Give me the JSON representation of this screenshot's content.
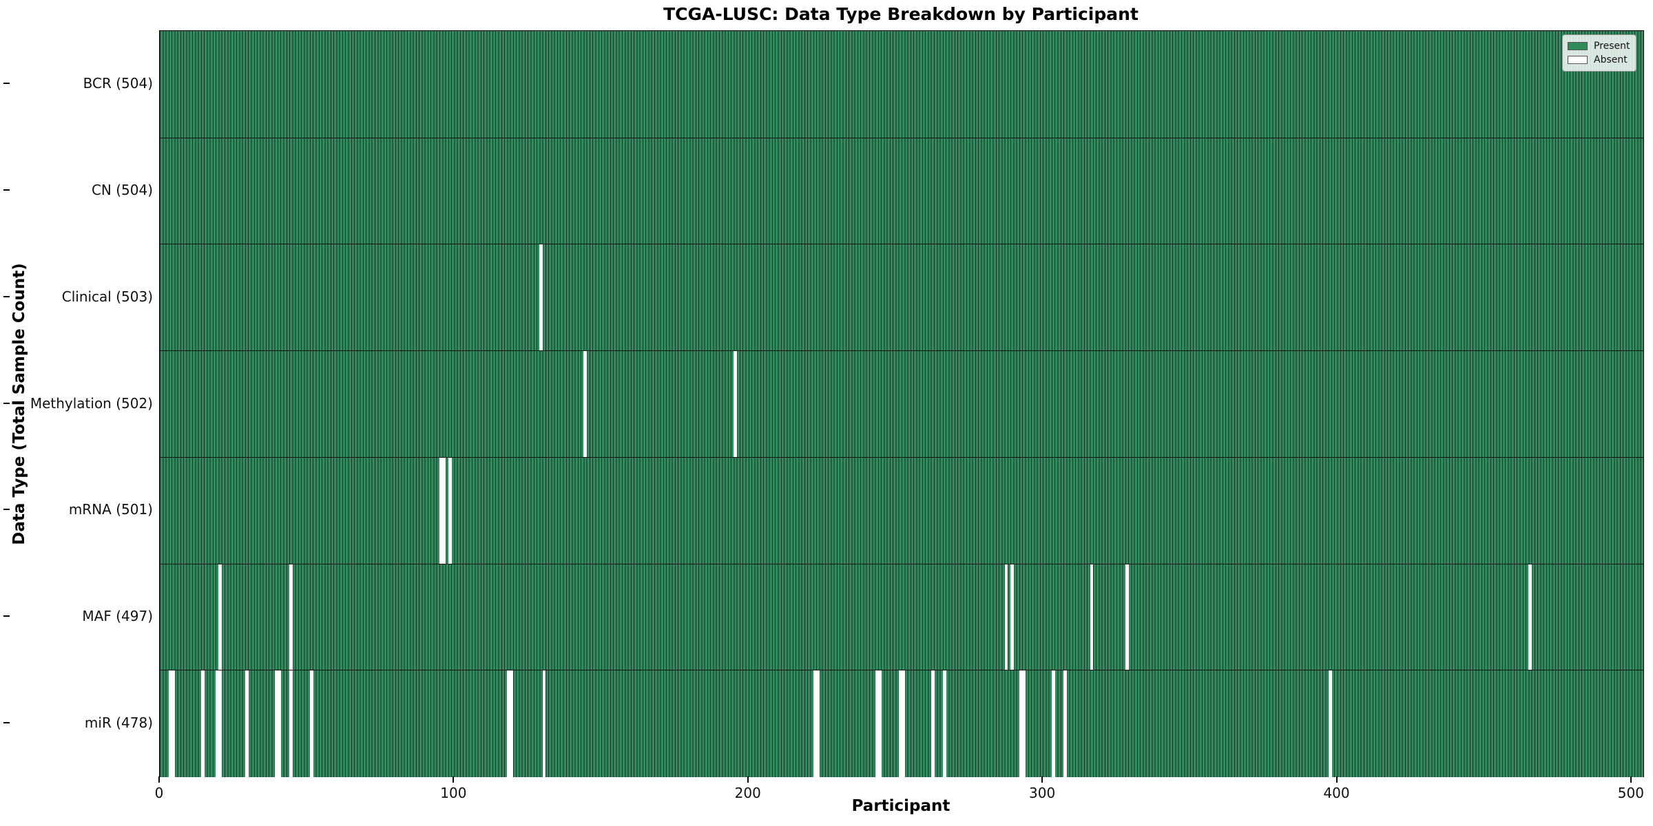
{
  "chart_data": {
    "type": "heatmap",
    "title": "TCGA-LUSC: Data Type Breakdown by Participant",
    "xlabel": "Participant",
    "ylabel": "Data Type (Total Sample Count)",
    "x_ticks": [
      0,
      100,
      200,
      300,
      400,
      500
    ],
    "x_range": [
      0,
      504
    ],
    "n_participants": 504,
    "grid": false,
    "legend_position": "upper right",
    "legend": [
      {
        "label": "Present",
        "color": "#2e8b57"
      },
      {
        "label": "Absent",
        "color": "#ffffff"
      }
    ],
    "colors": {
      "present": "#2e8b57",
      "absent": "#ffffff",
      "bar_edge": "#0a2316"
    },
    "rows": [
      {
        "label": "BCR (504)",
        "data_type": "BCR",
        "present_count": 504,
        "absent_participants": []
      },
      {
        "label": "CN (504)",
        "data_type": "CN",
        "present_count": 504,
        "absent_participants": []
      },
      {
        "label": "Clinical (503)",
        "data_type": "Clinical",
        "present_count": 503,
        "absent_participants": [
          129
        ]
      },
      {
        "label": "Methylation (502)",
        "data_type": "Methylation",
        "present_count": 502,
        "absent_participants": [
          144,
          195
        ]
      },
      {
        "label": "mRNA (501)",
        "data_type": "mRNA",
        "present_count": 501,
        "absent_participants": [
          95,
          96,
          98
        ]
      },
      {
        "label": "MAF (497)",
        "data_type": "MAF",
        "present_count": 497,
        "absent_participants": [
          20,
          44,
          287,
          289,
          316,
          328,
          465
        ]
      },
      {
        "label": "miR (478)",
        "data_type": "miR",
        "present_count": 478,
        "absent_participants": [
          3,
          4,
          14,
          19,
          20,
          29,
          39,
          40,
          44,
          51,
          118,
          119,
          130,
          222,
          223,
          243,
          244,
          251,
          252,
          262,
          266,
          292,
          293,
          303,
          307,
          397
        ]
      }
    ]
  }
}
